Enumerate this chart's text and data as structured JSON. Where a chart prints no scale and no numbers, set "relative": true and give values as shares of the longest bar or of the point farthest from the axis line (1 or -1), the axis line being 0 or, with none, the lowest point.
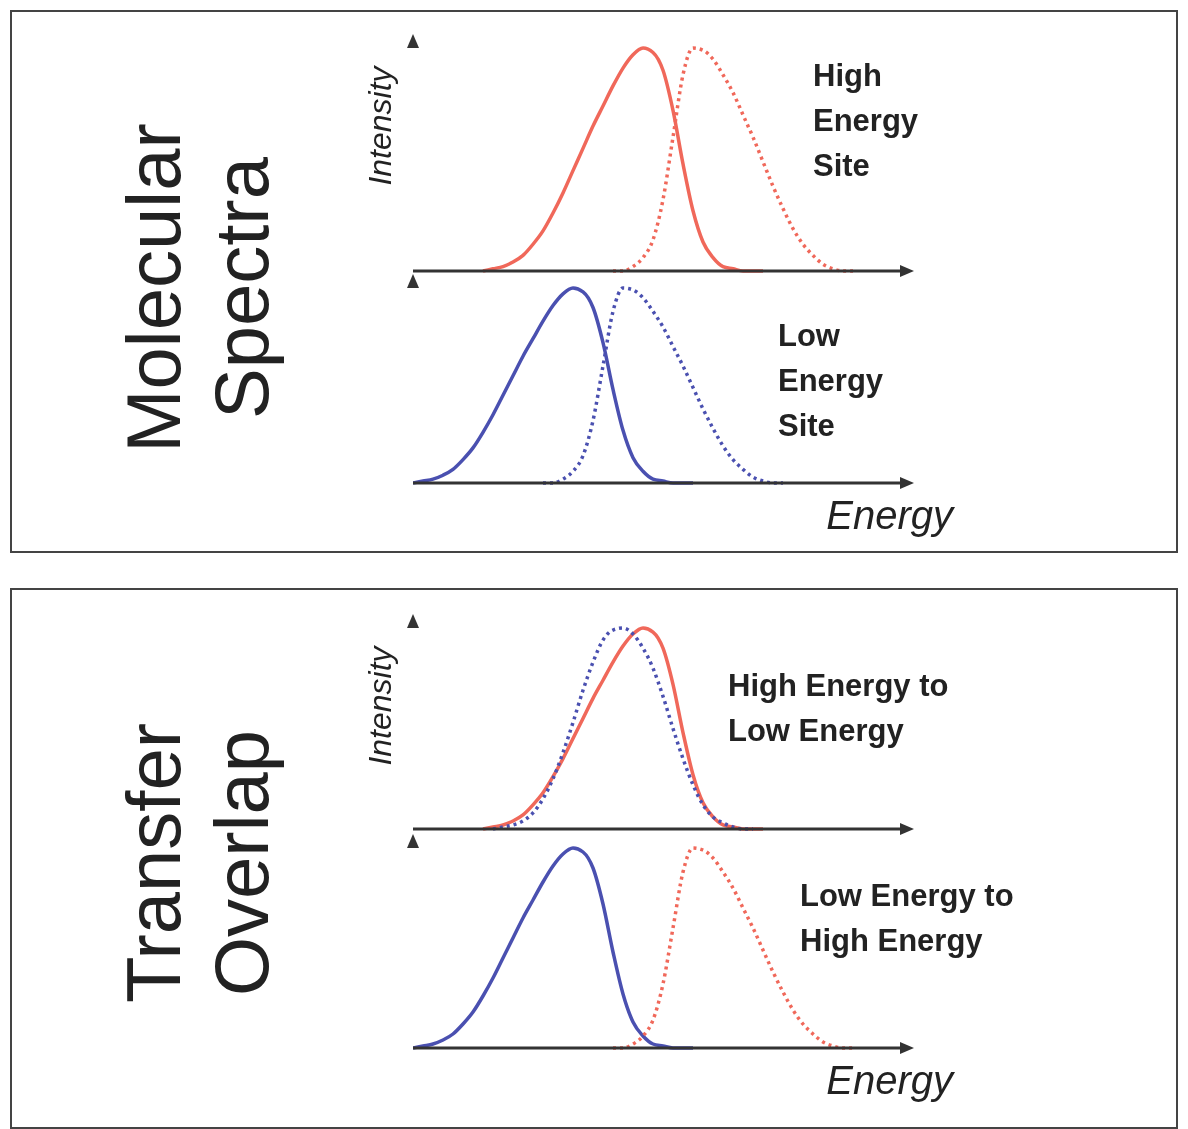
{
  "chart_data": [
    {
      "type": "line",
      "title": "Molecular Spectra",
      "ylabel": "Intensity",
      "annotations": [
        "High Energy Site"
      ],
      "relative": true,
      "grid": false,
      "legend": false,
      "marker": "none",
      "categories": [
        null,
        null,
        null,
        null,
        null,
        null,
        null,
        null,
        null,
        null,
        null,
        null,
        null,
        null,
        null,
        null,
        null,
        null,
        null,
        null,
        null,
        null,
        null,
        null,
        null,
        null,
        null,
        null,
        null,
        null,
        null,
        null,
        null,
        null,
        null,
        null,
        null,
        null,
        null,
        null,
        null,
        null,
        null,
        null,
        null,
        null,
        null,
        null,
        null,
        null
      ],
      "series": [
        {
          "color": "#f0685a",
          "line_style": "solid",
          "values": [
            null,
            null,
            null,
            null,
            null,
            null,
            null,
            0,
            0.01,
            0.02,
            0.04,
            0.07,
            0.12,
            0.18,
            0.26,
            0.35,
            0.45,
            0.55,
            0.65,
            0.74,
            0.83,
            0.91,
            0.97,
            1,
            0.98,
            0.9,
            0.72,
            0.48,
            0.27,
            0.13,
            0.06,
            0.02,
            0.01,
            0,
            0,
            0,
            null,
            null,
            null,
            null,
            null,
            null,
            null,
            null,
            null,
            null,
            null,
            null,
            null,
            null
          ]
        },
        {
          "color": "#f0685a",
          "line_style": "dotted",
          "values": [
            null,
            null,
            null,
            null,
            null,
            null,
            null,
            null,
            null,
            null,
            null,
            null,
            null,
            null,
            null,
            null,
            null,
            null,
            null,
            null,
            0,
            0,
            0.02,
            0.06,
            0.14,
            0.32,
            0.6,
            0.88,
            1,
            0.99,
            0.95,
            0.88,
            0.8,
            0.7,
            0.6,
            0.49,
            0.38,
            0.28,
            0.19,
            0.12,
            0.07,
            0.03,
            0.01,
            0,
            0,
            null,
            null,
            null,
            null,
            null
          ]
        }
      ]
    },
    {
      "type": "line",
      "xlabel": "Energy",
      "annotations": [
        "Low Energy Site"
      ],
      "relative": true,
      "grid": false,
      "legend": false,
      "marker": "none",
      "categories": [
        null,
        null,
        null,
        null,
        null,
        null,
        null,
        null,
        null,
        null,
        null,
        null,
        null,
        null,
        null,
        null,
        null,
        null,
        null,
        null,
        null,
        null,
        null,
        null,
        null,
        null,
        null,
        null,
        null,
        null,
        null,
        null,
        null,
        null,
        null,
        null,
        null,
        null,
        null,
        null,
        null,
        null,
        null,
        null,
        null,
        null,
        null,
        null,
        null,
        null
      ],
      "series": [
        {
          "color": "#4a50b0",
          "line_style": "solid",
          "values": [
            0,
            0.01,
            0.02,
            0.04,
            0.07,
            0.12,
            0.18,
            0.26,
            0.35,
            0.45,
            0.55,
            0.65,
            0.74,
            0.83,
            0.91,
            0.97,
            1,
            0.98,
            0.9,
            0.72,
            0.48,
            0.27,
            0.13,
            0.06,
            0.02,
            0.01,
            0,
            0,
            0,
            null,
            null,
            null,
            null,
            null,
            null,
            null,
            null,
            null,
            null,
            null,
            null,
            null,
            null,
            null,
            null,
            null,
            null,
            null,
            null,
            null
          ]
        },
        {
          "color": "#4a50b0",
          "line_style": "dotted",
          "values": [
            null,
            null,
            null,
            null,
            null,
            null,
            null,
            null,
            null,
            null,
            null,
            null,
            null,
            0,
            0,
            0.02,
            0.06,
            0.14,
            0.32,
            0.6,
            0.88,
            1,
            0.99,
            0.95,
            0.88,
            0.8,
            0.7,
            0.6,
            0.49,
            0.38,
            0.28,
            0.19,
            0.12,
            0.07,
            0.03,
            0.01,
            0,
            0,
            null,
            null,
            null,
            null,
            null,
            null,
            null,
            null,
            null,
            null,
            null,
            null
          ]
        }
      ]
    },
    {
      "type": "line",
      "title": "Transfer Overlap",
      "ylabel": "Intensity",
      "annotations": [
        "High Energy to Low Energy"
      ],
      "relative": true,
      "grid": false,
      "legend": false,
      "marker": "none",
      "categories": [
        null,
        null,
        null,
        null,
        null,
        null,
        null,
        null,
        null,
        null,
        null,
        null,
        null,
        null,
        null,
        null,
        null,
        null,
        null,
        null,
        null,
        null,
        null,
        null,
        null,
        null,
        null,
        null,
        null,
        null,
        null,
        null,
        null,
        null,
        null,
        null,
        null,
        null,
        null,
        null,
        null,
        null,
        null,
        null,
        null,
        null,
        null,
        null,
        null,
        null
      ],
      "series": [
        {
          "color": "#f0685a",
          "line_style": "solid",
          "values": [
            null,
            null,
            null,
            null,
            null,
            null,
            null,
            0,
            0.01,
            0.02,
            0.04,
            0.07,
            0.12,
            0.18,
            0.26,
            0.35,
            0.45,
            0.55,
            0.65,
            0.74,
            0.83,
            0.91,
            0.97,
            1,
            0.98,
            0.9,
            0.72,
            0.48,
            0.27,
            0.13,
            0.06,
            0.02,
            0.01,
            0,
            0,
            0,
            null,
            null,
            null,
            null,
            null,
            null,
            null,
            null,
            null,
            null,
            null,
            null,
            null,
            null
          ]
        },
        {
          "color": "#4a50b0",
          "line_style": "dotted",
          "values": [
            null,
            null,
            null,
            null,
            null,
            null,
            null,
            null,
            0,
            0.01,
            0.02,
            0.04,
            0.08,
            0.15,
            0.25,
            0.38,
            0.53,
            0.69,
            0.83,
            0.94,
            0.99,
            1,
            0.97,
            0.9,
            0.8,
            0.66,
            0.5,
            0.35,
            0.22,
            0.12,
            0.06,
            0.03,
            0.01,
            0,
            0,
            null,
            null,
            null,
            null,
            null,
            null,
            null,
            null,
            null,
            null,
            null,
            null,
            null,
            null,
            null
          ]
        }
      ]
    },
    {
      "type": "line",
      "xlabel": "Energy",
      "annotations": [
        "Low Energy to High Energy"
      ],
      "relative": true,
      "grid": false,
      "legend": false,
      "marker": "none",
      "categories": [
        null,
        null,
        null,
        null,
        null,
        null,
        null,
        null,
        null,
        null,
        null,
        null,
        null,
        null,
        null,
        null,
        null,
        null,
        null,
        null,
        null,
        null,
        null,
        null,
        null,
        null,
        null,
        null,
        null,
        null,
        null,
        null,
        null,
        null,
        null,
        null,
        null,
        null,
        null,
        null,
        null,
        null,
        null,
        null,
        null,
        null,
        null,
        null,
        null,
        null
      ],
      "series": [
        {
          "color": "#4a50b0",
          "line_style": "solid",
          "values": [
            0,
            0.01,
            0.02,
            0.04,
            0.07,
            0.12,
            0.18,
            0.26,
            0.35,
            0.45,
            0.55,
            0.65,
            0.74,
            0.83,
            0.91,
            0.97,
            1,
            0.98,
            0.9,
            0.72,
            0.48,
            0.27,
            0.13,
            0.06,
            0.02,
            0.01,
            0,
            0,
            0,
            null,
            null,
            null,
            null,
            null,
            null,
            null,
            null,
            null,
            null,
            null,
            null,
            null,
            null,
            null,
            null,
            null,
            null,
            null,
            null,
            null
          ]
        },
        {
          "color": "#f0685a",
          "line_style": "dotted",
          "values": [
            null,
            null,
            null,
            null,
            null,
            null,
            null,
            null,
            null,
            null,
            null,
            null,
            null,
            null,
            null,
            null,
            null,
            null,
            null,
            null,
            0,
            0,
            0.02,
            0.06,
            0.14,
            0.32,
            0.6,
            0.88,
            1,
            0.99,
            0.95,
            0.88,
            0.8,
            0.7,
            0.6,
            0.49,
            0.38,
            0.28,
            0.19,
            0.12,
            0.07,
            0.03,
            0.01,
            0,
            0,
            null,
            null,
            null,
            null,
            null
          ]
        }
      ]
    }
  ]
}
